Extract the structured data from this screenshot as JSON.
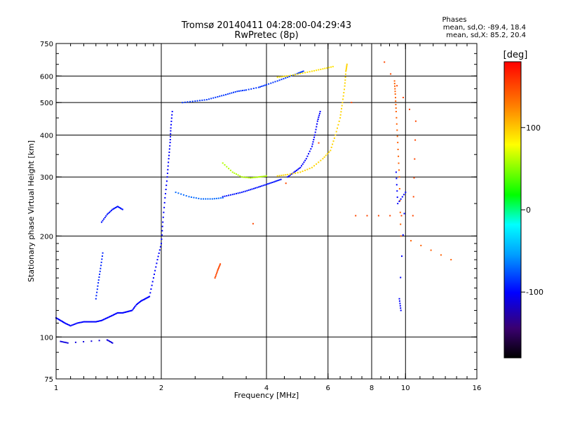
{
  "chart_data": {
    "type": "scatter",
    "title": "Tromsø 20140411 04:28:00-04:29:43",
    "subtitle": "RwPretec (8p)",
    "phases_box": {
      "heading": "Phases",
      "line_o": "mean, sd,O: -89.4, 18.4",
      "line_x": "mean, sd,X: 85.2, 20.4"
    },
    "xlabel": "Frequency [MHz]",
    "ylabel": "Stationary phase Virtual Height [km]",
    "x_scale": "log",
    "y_scale": "log",
    "xlim": [
      1,
      16
    ],
    "ylim": [
      75,
      750
    ],
    "x_ticks": [
      1,
      2,
      4,
      6,
      8,
      10,
      16
    ],
    "x_tick_labels": [
      "1",
      "2",
      "4",
      "6",
      "8",
      "10",
      "16"
    ],
    "y_ticks": [
      75,
      100,
      200,
      300,
      400,
      500,
      600,
      750
    ],
    "y_tick_labels": [
      "75",
      "100",
      "200",
      "300",
      "400",
      "500",
      "600",
      "750"
    ],
    "grid": true,
    "grid_x": [
      2,
      4,
      6,
      8,
      10
    ],
    "grid_y": [
      100,
      200,
      300,
      400,
      500,
      600
    ],
    "colorbar": {
      "label": "[deg]",
      "range": [
        -180,
        180
      ],
      "ticks": [
        100,
        0,
        -100
      ],
      "tick_labels": [
        "100",
        "0",
        "-100"
      ],
      "position": "right"
    },
    "traces": [
      {
        "phase": -100,
        "points": [
          [
            1.0,
            114
          ],
          [
            1.03,
            112
          ],
          [
            1.06,
            110
          ],
          [
            1.1,
            108
          ],
          [
            1.15,
            110
          ],
          [
            1.2,
            111
          ],
          [
            1.25,
            111
          ],
          [
            1.3,
            111
          ],
          [
            1.35,
            112
          ],
          [
            1.4,
            114
          ],
          [
            1.45,
            116
          ],
          [
            1.5,
            118
          ],
          [
            1.55,
            118
          ],
          [
            1.6,
            119
          ],
          [
            1.65,
            120
          ],
          [
            1.7,
            125
          ],
          [
            1.75,
            128
          ],
          [
            1.8,
            130
          ],
          [
            1.85,
            132
          ],
          [
            1.9,
            150
          ],
          [
            1.95,
            170
          ],
          [
            2.0,
            190
          ],
          [
            2.02,
            220
          ],
          [
            2.05,
            260
          ],
          [
            2.08,
            300
          ],
          [
            2.1,
            340
          ],
          [
            2.12,
            380
          ],
          [
            2.13,
            420
          ],
          [
            2.15,
            470
          ]
        ]
      },
      {
        "phase": -90,
        "points": [
          [
            1.3,
            130
          ],
          [
            1.32,
            145
          ],
          [
            1.34,
            160
          ],
          [
            1.36,
            178
          ]
        ]
      },
      {
        "phase": -95,
        "points": [
          [
            1.35,
            220
          ],
          [
            1.4,
            232
          ],
          [
            1.45,
            240
          ],
          [
            1.5,
            245
          ],
          [
            1.55,
            240
          ]
        ]
      },
      {
        "phase": -85,
        "points": [
          [
            2.3,
            500
          ],
          [
            2.5,
            505
          ],
          [
            2.7,
            510
          ],
          [
            2.9,
            520
          ],
          [
            3.1,
            530
          ],
          [
            3.3,
            540
          ],
          [
            3.5,
            545
          ],
          [
            3.8,
            555
          ],
          [
            4.0,
            565
          ],
          [
            4.3,
            580
          ],
          [
            4.6,
            595
          ],
          [
            4.9,
            610
          ],
          [
            5.1,
            620
          ]
        ]
      },
      {
        "phase": 90,
        "points": [
          [
            4.3,
            595
          ],
          [
            4.6,
            600
          ],
          [
            5.0,
            610
          ],
          [
            5.4,
            620
          ],
          [
            5.8,
            630
          ],
          [
            6.2,
            640
          ]
        ]
      },
      {
        "phase": -70,
        "points": [
          [
            2.2,
            270
          ],
          [
            2.4,
            262
          ],
          [
            2.6,
            258
          ],
          [
            2.8,
            258
          ],
          [
            3.0,
            260
          ]
        ]
      },
      {
        "phase": -95,
        "points": [
          [
            3.0,
            262
          ],
          [
            3.2,
            266
          ],
          [
            3.4,
            270
          ],
          [
            3.6,
            275
          ],
          [
            3.8,
            280
          ],
          [
            4.0,
            285
          ],
          [
            4.2,
            290
          ],
          [
            4.4,
            295
          ]
        ]
      },
      {
        "phase": -100,
        "points": [
          [
            4.6,
            300
          ],
          [
            4.8,
            310
          ],
          [
            5.0,
            320
          ],
          [
            5.2,
            340
          ],
          [
            5.4,
            370
          ],
          [
            5.5,
            400
          ],
          [
            5.6,
            440
          ],
          [
            5.7,
            470
          ]
        ]
      },
      {
        "phase": 60,
        "points": [
          [
            3.0,
            330
          ],
          [
            3.2,
            310
          ],
          [
            3.4,
            300
          ],
          [
            3.6,
            298
          ],
          [
            3.8,
            300
          ],
          [
            4.0,
            302
          ]
        ]
      },
      {
        "phase": 95,
        "points": [
          [
            4.3,
            302
          ],
          [
            4.6,
            305
          ],
          [
            5.0,
            310
          ],
          [
            5.4,
            320
          ],
          [
            5.8,
            340
          ],
          [
            6.1,
            360
          ],
          [
            6.3,
            400
          ],
          [
            6.5,
            450
          ],
          [
            6.6,
            500
          ],
          [
            6.7,
            560
          ],
          [
            6.75,
            620
          ],
          [
            6.8,
            650
          ]
        ]
      },
      {
        "phase": -110,
        "points": [
          [
            1.03,
            97
          ],
          [
            1.08,
            96
          ],
          [
            1.4,
            98
          ],
          [
            1.45,
            96
          ]
        ]
      },
      {
        "phase": 150,
        "points": [
          [
            2.85,
            150
          ],
          [
            2.9,
            158
          ],
          [
            2.95,
            165
          ],
          [
            8.7,
            660
          ],
          [
            10.7,
            440
          ],
          [
            10.5,
            230
          ],
          [
            7.2,
            230
          ]
        ]
      },
      {
        "phase": 140,
        "points": [
          [
            9.3,
            580
          ],
          [
            9.35,
            530
          ],
          [
            9.4,
            470
          ],
          [
            9.5,
            380
          ],
          [
            9.6,
            300
          ],
          [
            9.7,
            200
          ],
          [
            13.5,
            170
          ]
        ]
      },
      {
        "phase": -100,
        "points": [
          [
            9.4,
            310
          ],
          [
            9.5,
            250
          ],
          [
            10.0,
            270
          ],
          [
            9.6,
            130
          ],
          [
            9.7,
            120
          ]
        ]
      }
    ]
  }
}
